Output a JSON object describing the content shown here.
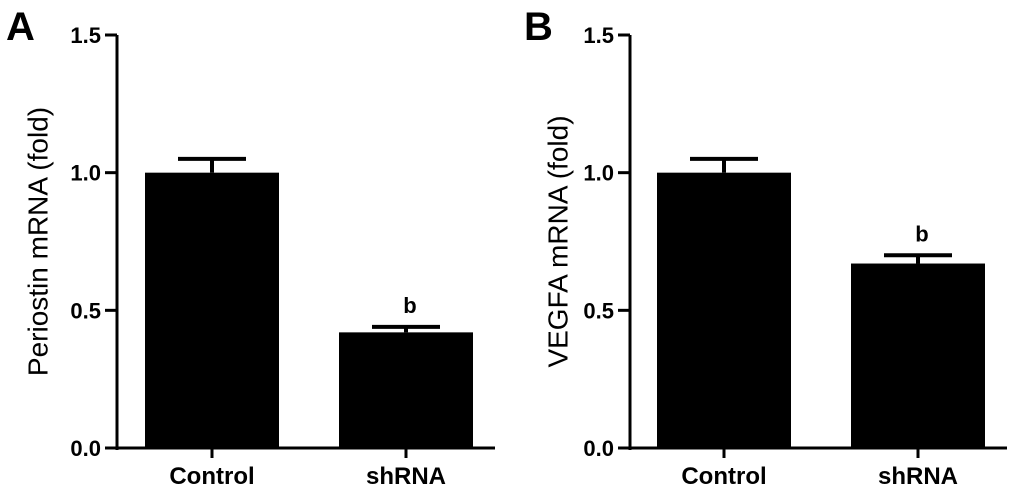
{
  "chart_data": [
    {
      "panel": "A",
      "type": "bar",
      "categories": [
        "Control",
        "shRNA"
      ],
      "values": [
        1.0,
        0.42
      ],
      "errors": [
        0.05,
        0.02
      ],
      "annotations": [
        "",
        "b"
      ],
      "ylabel": "Periostin mRNA (fold)",
      "xlabel": "",
      "ylim": [
        0,
        1.5
      ],
      "yticks": [
        "0.0",
        "0.5",
        "1.0",
        "1.5"
      ],
      "bar_color": "#000000"
    },
    {
      "panel": "B",
      "type": "bar",
      "categories": [
        "Control",
        "shRNA"
      ],
      "values": [
        1.0,
        0.67
      ],
      "errors": [
        0.05,
        0.03
      ],
      "annotations": [
        "",
        "b"
      ],
      "ylabel": "VEGFA mRNA (fold)",
      "xlabel": "",
      "ylim": [
        0,
        1.5
      ],
      "yticks": [
        "0.0",
        "0.5",
        "1.0",
        "1.5"
      ],
      "bar_color": "#000000"
    }
  ]
}
